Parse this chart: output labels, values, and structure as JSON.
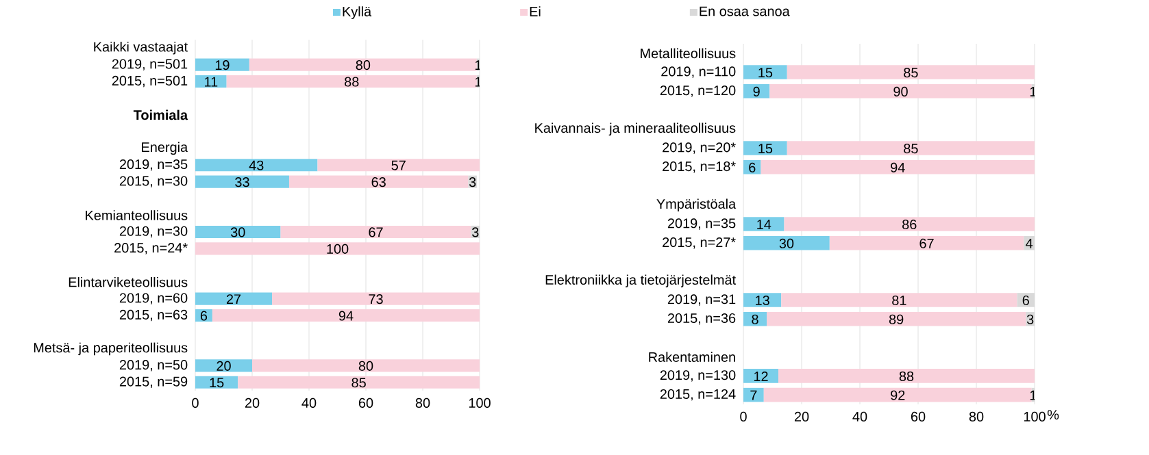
{
  "chart_data": [
    {
      "type": "bar",
      "orientation": "horizontal",
      "stacked": true,
      "data_labels": true,
      "grid": "x",
      "legend": "top",
      "categories": [
        "Kaikki vastaajat",
        "2019, n=501",
        "2015, n=501",
        null,
        "**Toimiala**",
        null,
        "Energia",
        "2019, n=35",
        "2015, n=30",
        null,
        "Kemianteollisuus",
        "2019, n=30",
        "2015, n=24*",
        null,
        "Elintarviketeollisuus",
        "2019, n=60",
        "2015, n=63",
        null,
        "Metsä- ja paperiteollisuus",
        "2019, n=50",
        "2015, n=59"
      ],
      "series": [
        {
          "name": "Kyllä",
          "color": "#7acfea",
          "values": [
            null,
            19,
            11,
            null,
            null,
            null,
            null,
            43,
            33,
            null,
            null,
            30,
            null,
            null,
            null,
            27,
            6,
            null,
            null,
            20,
            15
          ]
        },
        {
          "name": "Ei",
          "color": "#f9d1db",
          "values": [
            null,
            80,
            88,
            null,
            null,
            null,
            null,
            57,
            63,
            null,
            null,
            67,
            100,
            null,
            null,
            73,
            94,
            null,
            null,
            80,
            85
          ]
        },
        {
          "name": "En osaa sanoa",
          "color": "#d9d9d9",
          "values": [
            null,
            1,
            1,
            null,
            null,
            null,
            null,
            null,
            3,
            null,
            null,
            3,
            null,
            null,
            null,
            null,
            null,
            null,
            null,
            null,
            null
          ]
        }
      ],
      "xlim": [
        0,
        100
      ],
      "xticks": [
        0,
        20,
        40,
        60,
        80,
        100
      ]
    },
    {
      "type": "bar",
      "orientation": "horizontal",
      "stacked": true,
      "grid": "x",
      "xlabel": "%",
      "categories": [
        "Metalliteollisuus",
        "2019, n=110",
        "2015, n=120",
        null,
        "Kaivannais- ja mineraaliteollisuus",
        "2019, n=20*",
        "2015, n=18*",
        null,
        "Ympäristöala",
        "2019, n=35",
        "2015, n=27*",
        null,
        "Elektroniikka ja tietojärjestelmät",
        "2019, n=31",
        "2015, n=36",
        null,
        "Rakentaminen",
        "2019, n=130",
        "2015, n=124"
      ],
      "series": [
        {
          "color": "#7acfea",
          "values": [
            null,
            15,
            9,
            null,
            null,
            15,
            6,
            null,
            null,
            14,
            29.6,
            null,
            null,
            13,
            8,
            null,
            null,
            12,
            7
          ],
          "value_labels": [
            null,
            "15",
            "9",
            null,
            null,
            "15",
            "6",
            null,
            null,
            "14",
            "30",
            null,
            null,
            "13",
            "8",
            null,
            null,
            "12",
            "7"
          ]
        },
        {
          "color": "#f9d1db",
          "values": [
            null,
            85,
            90,
            null,
            null,
            85,
            94,
            null,
            null,
            86,
            66.7,
            null,
            null,
            81,
            89,
            null,
            null,
            88,
            92
          ],
          "value_labels": [
            null,
            "85",
            "90",
            null,
            null,
            "85",
            "94",
            null,
            null,
            "86",
            "67",
            null,
            null,
            "81",
            "89",
            null,
            null,
            "88",
            "92"
          ]
        },
        {
          "color": "#d9d9d9",
          "values": [
            null,
            null,
            1,
            null,
            null,
            null,
            null,
            null,
            null,
            null,
            3.7,
            null,
            null,
            6,
            3,
            null,
            null,
            null,
            1
          ],
          "value_labels": [
            null,
            null,
            "1",
            null,
            null,
            null,
            null,
            null,
            null,
            null,
            "4",
            null,
            null,
            "6",
            "3",
            null,
            null,
            null,
            "1"
          ]
        }
      ],
      "xlim": [
        0,
        100
      ],
      "xticks": [
        0,
        20,
        40,
        60,
        80,
        100
      ]
    }
  ]
}
